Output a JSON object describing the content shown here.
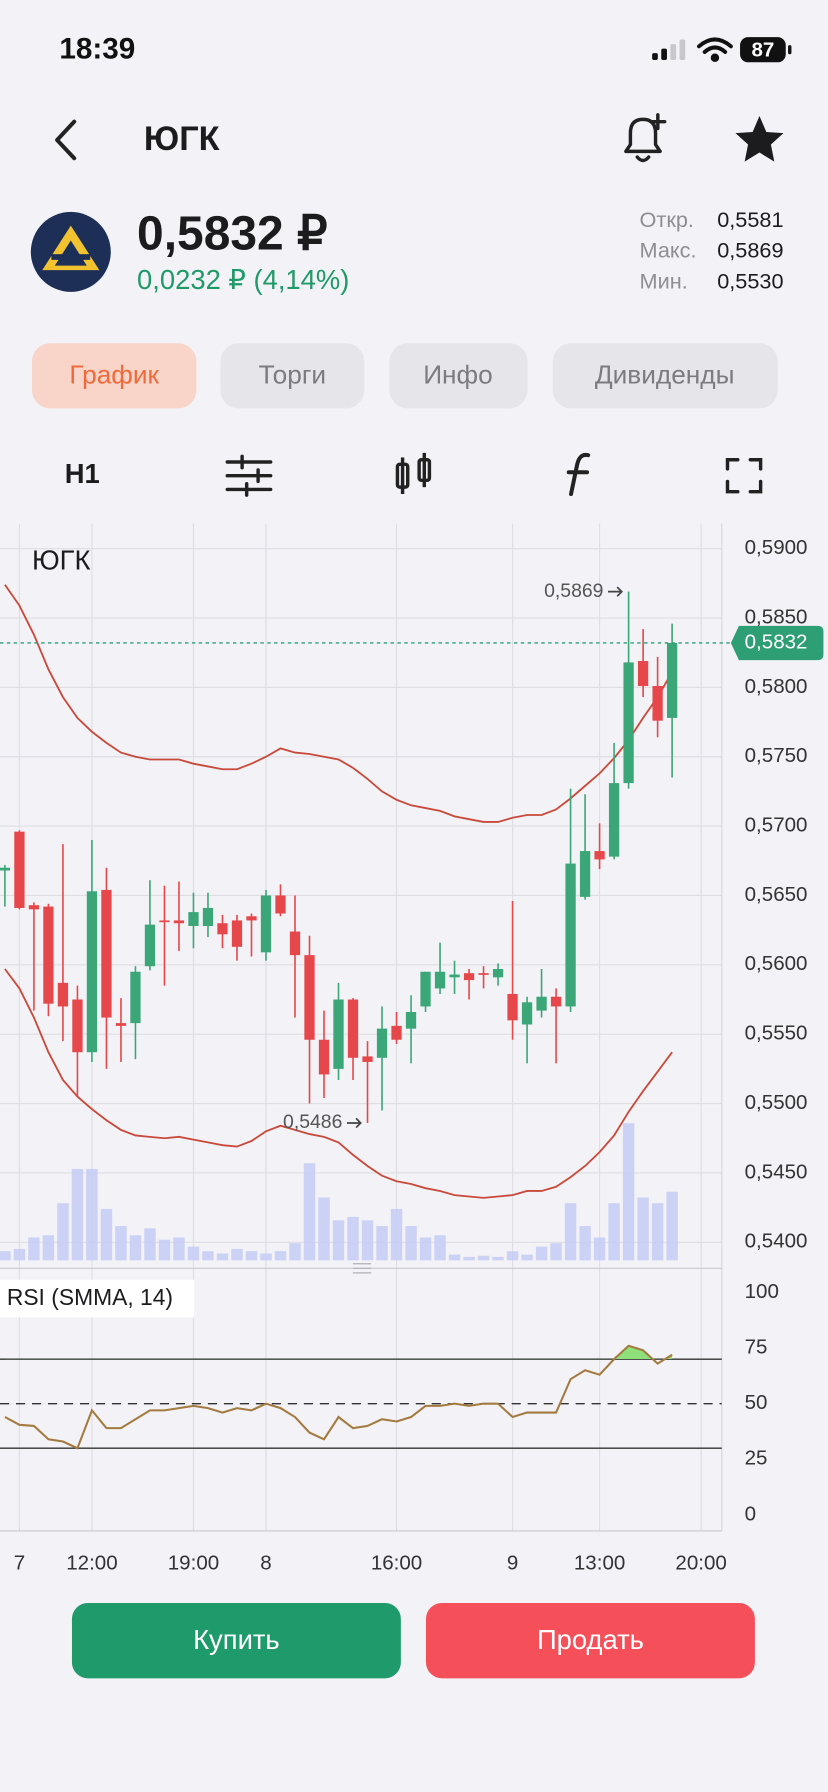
{
  "status_bar": {
    "time": "18:39",
    "battery": "87"
  },
  "header": {
    "title": "ЮГК"
  },
  "quote": {
    "price": "0,5832 ₽",
    "change": "0,0232 ₽ (4,14%)",
    "stats": [
      {
        "label": "Откр.",
        "value": "0,5581"
      },
      {
        "label": "Макс.",
        "value": "0,5869"
      },
      {
        "label": "Мин.",
        "value": "0,5530"
      }
    ]
  },
  "tabs": [
    "График",
    "Торги",
    "Инфо",
    "Дивиденды"
  ],
  "toolbar": {
    "interval": "H1"
  },
  "chart_data": [
    {
      "type": "candlestick",
      "title": "ЮГК",
      "categories": [
        null,
        "7",
        null,
        null,
        null,
        null,
        "12:00",
        null,
        null,
        null,
        null,
        null,
        null,
        "19:00",
        null,
        null,
        null,
        null,
        "8",
        null,
        null,
        null,
        null,
        null,
        null,
        null,
        null,
        "16:00",
        null,
        null,
        null,
        null,
        null,
        null,
        null,
        "9",
        null,
        null,
        null,
        null,
        null,
        "13:00",
        null,
        null,
        null,
        null,
        null,
        null,
        "20:00"
      ],
      "open": [
        0.5668,
        0.5696,
        0.5643,
        0.5642,
        0.5587,
        0.5575,
        0.5537,
        0.5654,
        0.5558,
        0.5558,
        0.5599,
        0.5632,
        0.5632,
        0.5628,
        0.5628,
        0.563,
        0.5632,
        0.5635,
        0.5609,
        0.565,
        0.5624,
        0.5607,
        0.5546,
        0.5525,
        0.5575,
        0.5534,
        0.5533,
        0.5556,
        0.5554,
        0.557,
        0.5583,
        0.5591,
        0.5594,
        0.5594,
        0.5591,
        0.5579,
        0.5557,
        0.5567,
        0.5577,
        0.557,
        0.5649,
        0.5682,
        0.5678,
        0.5731,
        0.5819,
        0.5801,
        0.5778,
        null,
        null
      ],
      "high": [
        0.5672,
        0.5697,
        0.5645,
        0.5644,
        0.5687,
        0.5585,
        0.569,
        0.567,
        0.5576,
        0.5599,
        0.5661,
        0.5657,
        0.566,
        0.5652,
        0.5652,
        0.5636,
        0.5636,
        0.5637,
        0.5654,
        0.5658,
        0.565,
        0.5621,
        0.5567,
        0.5587,
        0.5576,
        0.5545,
        0.557,
        0.5566,
        0.5578,
        0.5595,
        0.5616,
        0.5603,
        0.5597,
        0.5599,
        0.5601,
        0.5646,
        0.5577,
        0.5597,
        0.5583,
        0.5727,
        0.5723,
        0.5702,
        0.576,
        0.5869,
        0.5842,
        0.5822,
        0.5846,
        null,
        null
      ],
      "low": [
        0.5642,
        0.564,
        0.5567,
        0.5563,
        0.5545,
        0.5505,
        0.553,
        0.5525,
        0.553,
        0.5532,
        0.5596,
        0.5585,
        0.561,
        0.5612,
        0.562,
        0.5612,
        0.5603,
        0.5606,
        0.5603,
        0.5635,
        0.5562,
        0.55,
        0.5504,
        0.5517,
        0.5517,
        0.5486,
        0.5495,
        0.5543,
        0.5529,
        0.5566,
        0.5579,
        0.5579,
        0.5575,
        0.5583,
        0.5585,
        0.5546,
        0.5529,
        0.5562,
        0.5529,
        0.5566,
        0.5647,
        0.5669,
        0.5676,
        0.5727,
        0.5793,
        0.5764,
        0.5735,
        null,
        null
      ],
      "close": [
        0.567,
        0.5641,
        0.564,
        0.5572,
        0.557,
        0.5537,
        0.5653,
        0.5562,
        0.5556,
        0.5595,
        0.5629,
        0.5631,
        0.563,
        0.5638,
        0.5641,
        0.5622,
        0.5613,
        0.5632,
        0.565,
        0.5637,
        0.5607,
        0.5546,
        0.5521,
        0.5575,
        0.5533,
        0.553,
        0.5554,
        0.5546,
        0.5566,
        0.5595,
        0.5595,
        0.5593,
        0.5589,
        0.5593,
        0.5597,
        0.556,
        0.5573,
        0.5577,
        0.557,
        0.5673,
        0.5682,
        0.5676,
        0.5731,
        0.5818,
        0.5801,
        0.5776,
        0.5832,
        null,
        null
      ],
      "volume": [
        8,
        10,
        20,
        22,
        50,
        80,
        80,
        45,
        30,
        22,
        28,
        18,
        20,
        12,
        8,
        6,
        10,
        8,
        6,
        8,
        15,
        85,
        55,
        35,
        38,
        35,
        30,
        45,
        30,
        20,
        22,
        5,
        3,
        4,
        3,
        8,
        5,
        12,
        15,
        50,
        30,
        20,
        50,
        120,
        55,
        50,
        60,
        null,
        null
      ],
      "vlim": [
        0,
        150
      ],
      "bands": {
        "upper": [
          0.5874,
          0.5859,
          0.5838,
          0.5813,
          0.5793,
          0.5778,
          0.5768,
          0.576,
          0.5753,
          0.575,
          0.5748,
          0.5748,
          0.5748,
          0.5745,
          0.5743,
          0.5741,
          0.5741,
          0.5745,
          0.575,
          0.5756,
          0.5753,
          0.5752,
          0.575,
          0.5748,
          0.5742,
          0.5734,
          0.5725,
          0.5719,
          0.5715,
          0.5713,
          0.5711,
          0.5707,
          0.5705,
          0.5703,
          0.5703,
          0.5706,
          0.5708,
          0.5708,
          0.5712,
          0.572,
          0.5729,
          0.5738,
          0.5749,
          0.5762,
          0.5778,
          0.5793,
          0.5811,
          null,
          null
        ],
        "lower": [
          0.5597,
          0.5583,
          0.5562,
          0.5537,
          0.5517,
          0.5505,
          0.5496,
          0.5488,
          0.5481,
          0.5477,
          0.5476,
          0.5475,
          0.5476,
          0.5474,
          0.5472,
          0.547,
          0.5469,
          0.5473,
          0.548,
          0.5484,
          0.5481,
          0.5478,
          0.5476,
          0.5472,
          0.5463,
          0.5455,
          0.5448,
          0.5444,
          0.5442,
          0.5439,
          0.5437,
          0.5434,
          0.5433,
          0.5432,
          0.5433,
          0.5434,
          0.5437,
          0.5437,
          0.544,
          0.5447,
          0.5455,
          0.5465,
          0.5477,
          0.5494,
          0.5509,
          0.5523,
          0.5537,
          null,
          null
        ]
      },
      "ylim": [
        0.5387,
        0.5918
      ],
      "yticks": [
        {
          "value": 0.59,
          "label": "0,5900"
        },
        {
          "value": 0.585,
          "label": "0,5850"
        },
        {
          "value": 0.58,
          "label": "0,5800"
        },
        {
          "value": 0.575,
          "label": "0,5750"
        },
        {
          "value": 0.57,
          "label": "0,5700"
        },
        {
          "value": 0.565,
          "label": "0,5650"
        },
        {
          "value": 0.56,
          "label": "0,5600"
        },
        {
          "value": 0.555,
          "label": "0,5550"
        },
        {
          "value": 0.55,
          "label": "0,5500"
        },
        {
          "value": 0.545,
          "label": "0,5450"
        },
        {
          "value": 0.54,
          "label": "0,5400"
        }
      ],
      "max_label": {
        "value": 0.5869,
        "label": "0,5869"
      },
      "min_label": {
        "value": 0.5486,
        "label": "0,5486"
      },
      "last": {
        "value": 0.5832,
        "label": "0,5832"
      },
      "grid": true,
      "up_color": "#3ba677",
      "down_color": "#e5474b",
      "band_color": "#c94a3a",
      "volume_color": "#c5cbf6",
      "last_color": "#2e9e74"
    },
    {
      "type": "line",
      "title": "RSI (SMMA, 14)",
      "values": [
        44,
        40.5,
        40,
        34,
        33,
        30,
        47,
        39,
        39,
        43,
        47,
        47,
        48,
        49,
        48,
        46,
        48,
        47,
        50,
        48,
        44,
        37,
        34,
        44,
        39,
        40,
        43,
        42,
        44,
        49,
        49,
        50,
        49,
        50,
        50,
        44,
        46,
        46,
        46,
        61,
        65,
        63,
        70,
        76,
        74,
        68,
        72,
        null,
        null
      ],
      "ylim": [
        -7.2,
        106.7
      ],
      "yticks": [
        0,
        25,
        50,
        75,
        100
      ],
      "levels": [
        30,
        70
      ],
      "midline": 50,
      "fill_above": 70,
      "color": "#a47a3f",
      "fill_color": "#8fe07a"
    }
  ],
  "buttons": {
    "buy": "Купить",
    "sell": "Продать"
  }
}
